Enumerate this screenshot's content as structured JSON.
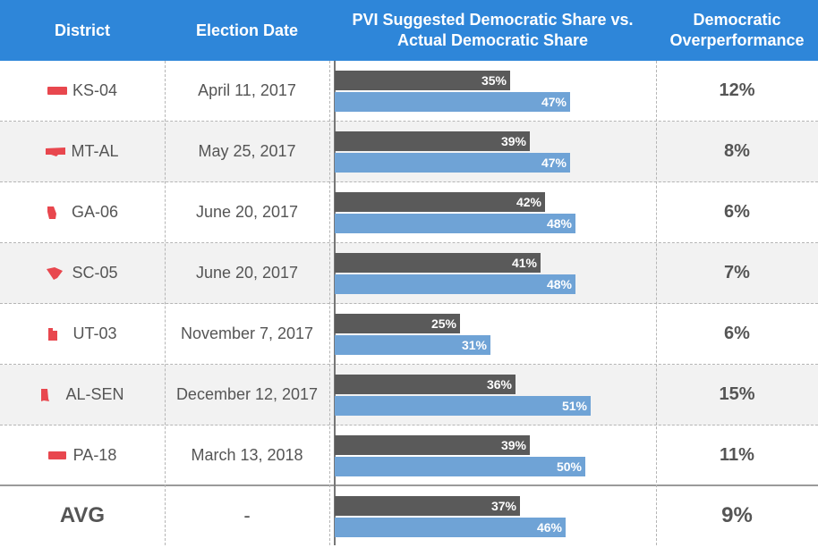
{
  "header": {
    "district": "District",
    "date": "Election Date",
    "share_line1": "PVI Suggested Democratic Share vs.",
    "share_line2": "Actual Democratic Share",
    "over_line1": "Democratic",
    "over_line2": "Overperformance"
  },
  "colors": {
    "header_bg": "#2e86d9",
    "pvi_bar": "#5a5a5a",
    "actual_bar": "#6fa3d6",
    "state_icon": "#e8474e"
  },
  "chart_data": {
    "type": "bar",
    "categories": [
      "KS-04",
      "MT-AL",
      "GA-06",
      "SC-05",
      "UT-03",
      "AL-SEN",
      "PA-18",
      "AVG"
    ],
    "dates": [
      "April 11, 2017",
      "May 25, 2017",
      "June 20, 2017",
      "June 20, 2017",
      "November 7, 2017",
      "December 12, 2017",
      "March 13, 2018",
      "-"
    ],
    "series": [
      {
        "values": [
          35,
          39,
          42,
          41,
          25,
          36,
          39,
          37
        ],
        "labels": [
          "35%",
          "39%",
          "42%",
          "41%",
          "25%",
          "36%",
          "39%",
          "37%"
        ]
      },
      {
        "values": [
          47,
          47,
          48,
          48,
          31,
          51,
          50,
          46
        ],
        "labels": [
          "47%",
          "47%",
          "48%",
          "48%",
          "31%",
          "51%",
          "50%",
          "46%"
        ]
      }
    ],
    "overperformance": [
      "12%",
      "8%",
      "6%",
      "7%",
      "6%",
      "15%",
      "11%",
      "9%"
    ],
    "orientation": "horizontal",
    "xlim": [
      0,
      100
    ],
    "grid": false
  }
}
